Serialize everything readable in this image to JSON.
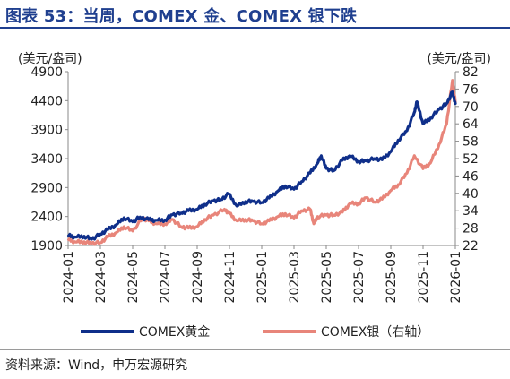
{
  "figure": {
    "title": "图表 53：当周，COMEX 金、COMEX 银下跌",
    "source": "资料来源：Wind，申万宏源研究"
  },
  "colors": {
    "title": "#1f3f8f",
    "gold_line": "#0f2f8a",
    "silver_line": "#e8857a",
    "axis": "#8a8a8a"
  },
  "chart_data": {
    "type": "line",
    "title": "",
    "x": [
      "2024-01",
      "2024-03",
      "2024-05",
      "2024-07",
      "2024-09",
      "2024-11",
      "2025-01",
      "2025-03",
      "2025-05",
      "2025-07",
      "2025-09",
      "2025-11",
      "2026-01"
    ],
    "left_axis": {
      "unit": "(美元/盎司)",
      "ylim": [
        1900,
        4900
      ],
      "ticks": [
        "1900",
        "2400",
        "2900",
        "3400",
        "3900",
        "4400",
        "4900"
      ]
    },
    "right_axis": {
      "unit": "(美元/盎司)",
      "ylim": [
        22,
        82
      ],
      "ticks": [
        "22",
        "28",
        "34",
        "40",
        "46",
        "52",
        "58",
        "64",
        "70",
        "76",
        "82"
      ]
    },
    "series": [
      {
        "name": "COMEX黄金",
        "axis": "left",
        "points": [
          [
            "2024-01-02",
            2070
          ],
          [
            "2024-01-15",
            2045
          ],
          [
            "2024-02-01",
            2060
          ],
          [
            "2024-02-15",
            2010
          ],
          [
            "2024-03-01",
            2095
          ],
          [
            "2024-03-15",
            2175
          ],
          [
            "2024-04-01",
            2260
          ],
          [
            "2024-04-15",
            2380
          ],
          [
            "2024-05-01",
            2310
          ],
          [
            "2024-05-15",
            2390
          ],
          [
            "2024-06-01",
            2345
          ],
          [
            "2024-06-15",
            2335
          ],
          [
            "2024-07-01",
            2340
          ],
          [
            "2024-07-15",
            2430
          ],
          [
            "2024-08-01",
            2460
          ],
          [
            "2024-08-15",
            2500
          ],
          [
            "2024-09-01",
            2525
          ],
          [
            "2024-09-15",
            2610
          ],
          [
            "2024-10-01",
            2670
          ],
          [
            "2024-10-15",
            2690
          ],
          [
            "2024-10-30",
            2790
          ],
          [
            "2024-11-15",
            2580
          ],
          [
            "2024-12-01",
            2660
          ],
          [
            "2024-12-15",
            2660
          ],
          [
            "2025-01-01",
            2640
          ],
          [
            "2025-01-15",
            2720
          ],
          [
            "2025-02-01",
            2840
          ],
          [
            "2025-02-15",
            2930
          ],
          [
            "2025-03-01",
            2870
          ],
          [
            "2025-03-15",
            3000
          ],
          [
            "2025-04-01",
            3150
          ],
          [
            "2025-04-15",
            3320
          ],
          [
            "2025-04-22",
            3450
          ],
          [
            "2025-05-01",
            3230
          ],
          [
            "2025-05-15",
            3190
          ],
          [
            "2025-06-01",
            3370
          ],
          [
            "2025-06-15",
            3450
          ],
          [
            "2025-07-01",
            3350
          ],
          [
            "2025-07-15",
            3360
          ],
          [
            "2025-08-01",
            3400
          ],
          [
            "2025-08-15",
            3380
          ],
          [
            "2025-09-01",
            3520
          ],
          [
            "2025-09-15",
            3720
          ],
          [
            "2025-10-01",
            3880
          ],
          [
            "2025-10-15",
            4200
          ],
          [
            "2025-10-20",
            4380
          ],
          [
            "2025-11-01",
            4000
          ],
          [
            "2025-11-15",
            4100
          ],
          [
            "2025-12-01",
            4250
          ],
          [
            "2025-12-15",
            4350
          ],
          [
            "2025-12-26",
            4550
          ],
          [
            "2026-01-01",
            4350
          ]
        ]
      },
      {
        "name": "COMEX银（右轴）",
        "axis": "right",
        "points": [
          [
            "2024-01-02",
            24
          ],
          [
            "2024-01-15",
            23.2
          ],
          [
            "2024-02-01",
            23.3
          ],
          [
            "2024-02-15",
            22.8
          ],
          [
            "2024-03-01",
            23.0
          ],
          [
            "2024-03-15",
            25.0
          ],
          [
            "2024-04-01",
            26.5
          ],
          [
            "2024-04-15",
            28.5
          ],
          [
            "2024-05-01",
            27.0
          ],
          [
            "2024-05-20",
            31.5
          ],
          [
            "2024-06-01",
            30.5
          ],
          [
            "2024-06-15",
            29.5
          ],
          [
            "2024-07-01",
            29.5
          ],
          [
            "2024-07-15",
            31.0
          ],
          [
            "2024-08-01",
            28.5
          ],
          [
            "2024-08-15",
            28.0
          ],
          [
            "2024-09-01",
            28.5
          ],
          [
            "2024-09-15",
            31.0
          ],
          [
            "2024-10-01",
            32.5
          ],
          [
            "2024-10-22",
            34.5
          ],
          [
            "2024-11-01",
            33.0
          ],
          [
            "2024-11-15",
            30.5
          ],
          [
            "2024-12-01",
            31.0
          ],
          [
            "2024-12-15",
            30.5
          ],
          [
            "2025-01-01",
            29.5
          ],
          [
            "2025-01-15",
            30.5
          ],
          [
            "2025-02-01",
            32.0
          ],
          [
            "2025-02-15",
            33.0
          ],
          [
            "2025-03-01",
            31.5
          ],
          [
            "2025-03-15",
            34.0
          ],
          [
            "2025-04-01",
            34.5
          ],
          [
            "2025-04-08",
            29.5
          ],
          [
            "2025-04-15",
            32.0
          ],
          [
            "2025-05-01",
            32.5
          ],
          [
            "2025-05-15",
            32.5
          ],
          [
            "2025-06-01",
            33.5
          ],
          [
            "2025-06-15",
            36.5
          ],
          [
            "2025-07-01",
            36.5
          ],
          [
            "2025-07-15",
            38.5
          ],
          [
            "2025-08-01",
            37.0
          ],
          [
            "2025-08-15",
            38.0
          ],
          [
            "2025-09-01",
            41.0
          ],
          [
            "2025-09-15",
            43.0
          ],
          [
            "2025-10-01",
            47.0
          ],
          [
            "2025-10-15",
            53.0
          ],
          [
            "2025-11-01",
            48.5
          ],
          [
            "2025-11-15",
            50.5
          ],
          [
            "2025-12-01",
            57.0
          ],
          [
            "2025-12-15",
            64.0
          ],
          [
            "2025-12-26",
            79.0
          ],
          [
            "2026-01-01",
            71.5
          ]
        ]
      }
    ],
    "legend": {
      "placement": "bottom",
      "entries": [
        "COMEX黄金",
        "COMEX银（右轴）"
      ]
    },
    "grid": false
  }
}
